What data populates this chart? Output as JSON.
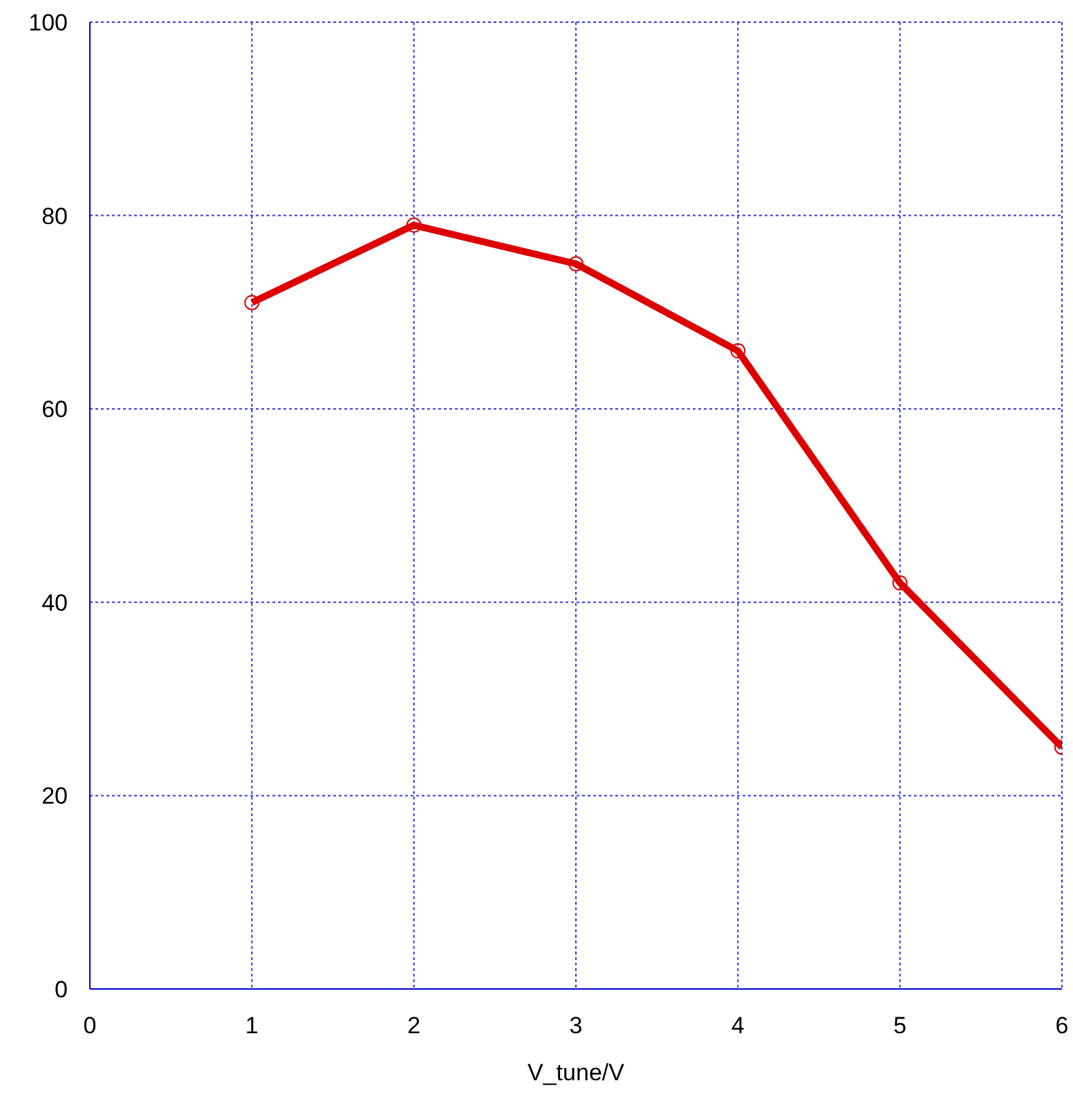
{
  "chart_data": {
    "type": "line",
    "xlabel": "V_tune/V",
    "x": [
      1,
      2,
      3,
      4,
      5,
      6
    ],
    "series": [
      {
        "color": "#dd0000",
        "values": [
          71,
          79,
          75,
          66,
          42,
          25
        ]
      }
    ],
    "xlim": [
      0,
      6
    ],
    "xticks": [
      0,
      1,
      2,
      3,
      4,
      5,
      6
    ],
    "ylim": [
      0,
      100
    ],
    "yticks": [
      0,
      20,
      40,
      60,
      80,
      100
    ],
    "grid": true,
    "marker": "circle",
    "line_style": "solid",
    "legend": false
  }
}
